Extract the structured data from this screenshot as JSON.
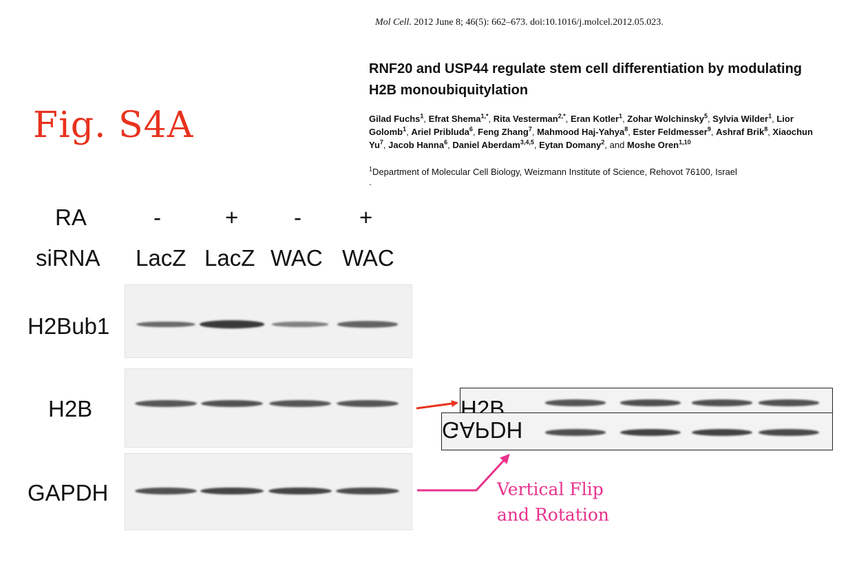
{
  "header": {
    "journal": "Mol Cell.",
    "citation_rest": " 2012 June 8; 46(5): 662–673. doi:10.1016/j.molcel.2012.05.023.",
    "paper_title": "RNF20 and USP44 regulate stem cell differentiation by modulating H2B monoubiquitylation",
    "authors": [
      {
        "name": "Gilad Fuchs",
        "sup": "1"
      },
      {
        "name": "Efrat Shema",
        "sup": "1,*"
      },
      {
        "name": "Rita Vesterman",
        "sup": "2,*"
      },
      {
        "name": "Eran Kotler",
        "sup": "1"
      },
      {
        "name": "Zohar Wolchinsky",
        "sup": "5"
      },
      {
        "name": "Sylvia Wilder",
        "sup": "1"
      },
      {
        "name": "Lior Golomb",
        "sup": "1"
      },
      {
        "name": "Ariel Pribluda",
        "sup": "6"
      },
      {
        "name": "Feng Zhang",
        "sup": "7"
      },
      {
        "name": "Mahmood Haj-Yahya",
        "sup": "8"
      },
      {
        "name": "Ester Feldmesser",
        "sup": "9"
      },
      {
        "name": "Ashraf Brik",
        "sup": "8"
      },
      {
        "name": "Xiaochun Yu",
        "sup": "7"
      },
      {
        "name": "Jacob Hanna",
        "sup": "6"
      },
      {
        "name": "Daniel Aberdam",
        "sup": "3,4,5"
      },
      {
        "name": "Eytan Domany",
        "sup": "2"
      },
      {
        "name": "Moshe Oren",
        "sup": "1,10"
      }
    ],
    "and_word": "and",
    "affiliation_sup": "1",
    "affiliation": "Department of Molecular Cell Biology, Weizmann Institute of Science, Rehovot 76100, Israel",
    "affiliation_dash": "-"
  },
  "figure_label": "Fig. S4A",
  "conditions": {
    "ra_label": "RA",
    "sirna_label": "siRNA",
    "lanes": [
      {
        "ra": "-",
        "sirna": "LacZ"
      },
      {
        "ra": "+",
        "sirna": "LacZ"
      },
      {
        "ra": "-",
        "sirna": "WAC"
      },
      {
        "ra": "+",
        "sirna": "WAC"
      }
    ]
  },
  "blots": [
    {
      "label": "H2Bub1",
      "band_intensity": [
        0.55,
        0.95,
        0.35,
        0.6
      ]
    },
    {
      "label": "H2B",
      "band_intensity": [
        0.7,
        0.75,
        0.72,
        0.72
      ]
    },
    {
      "label": "GAPDH",
      "band_intensity": [
        0.75,
        0.85,
        0.85,
        0.8
      ]
    }
  ],
  "insets": {
    "h2b_label": "H2B",
    "gapdh_label": "GAPDH"
  },
  "annotation": {
    "line1": "Vertical Flip",
    "line2": "and Rotation"
  },
  "colors": {
    "figure_label": "#e8321e",
    "red_arrow": "#e8321e",
    "pink_arrow": "#e8328c",
    "band": "#2a2a2a"
  }
}
